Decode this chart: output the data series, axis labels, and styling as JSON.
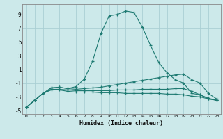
{
  "xlabel": "Humidex (Indice chaleur)",
  "x_ticks": [
    0,
    1,
    2,
    3,
    4,
    5,
    6,
    7,
    8,
    9,
    10,
    11,
    12,
    13,
    14,
    15,
    16,
    17,
    18,
    19,
    20,
    21,
    22,
    23
  ],
  "xlim": [
    -0.5,
    23.5
  ],
  "ylim": [
    -5.5,
    10.5
  ],
  "y_ticks": [
    -5,
    -3,
    -1,
    1,
    3,
    5,
    7,
    9
  ],
  "bg_color": "#cce9ea",
  "grid_color": "#aacfd4",
  "line_color": "#1e7a72",
  "lines": [
    {
      "x": [
        0,
        1,
        2,
        3,
        4,
        5,
        6,
        7,
        8,
        9,
        10,
        11,
        12,
        13,
        14,
        15,
        16,
        17,
        18,
        19,
        20,
        21,
        22,
        23
      ],
      "y": [
        -4.5,
        -3.5,
        -2.5,
        -1.7,
        -1.6,
        -1.8,
        -1.5,
        -0.4,
        2.2,
        6.2,
        8.8,
        9.0,
        9.5,
        9.3,
        7.2,
        4.5,
        2.0,
        0.5,
        -0.5,
        -1.0,
        -2.5,
        -2.7,
        -3.3,
        -3.5
      ]
    },
    {
      "x": [
        0,
        1,
        2,
        3,
        4,
        5,
        6,
        7,
        8,
        9,
        10,
        11,
        12,
        13,
        14,
        15,
        16,
        17,
        18,
        19,
        20,
        21,
        22,
        23
      ],
      "y": [
        -4.5,
        -3.5,
        -2.5,
        -1.7,
        -1.6,
        -1.8,
        -1.9,
        -1.8,
        -1.7,
        -1.6,
        -1.4,
        -1.2,
        -1.0,
        -0.8,
        -0.6,
        -0.4,
        -0.2,
        0.0,
        0.2,
        0.3,
        -0.5,
        -1.0,
        -2.5,
        -3.3
      ]
    },
    {
      "x": [
        0,
        1,
        2,
        3,
        4,
        5,
        6,
        7,
        8,
        9,
        10,
        11,
        12,
        13,
        14,
        15,
        16,
        17,
        18,
        19,
        20,
        21,
        22,
        23
      ],
      "y": [
        -4.5,
        -3.5,
        -2.5,
        -1.9,
        -1.9,
        -2.0,
        -2.1,
        -2.1,
        -2.1,
        -2.1,
        -2.1,
        -2.0,
        -2.0,
        -2.0,
        -1.9,
        -1.9,
        -1.9,
        -1.9,
        -1.8,
        -1.8,
        -2.2,
        -2.7,
        -3.2,
        -3.5
      ]
    },
    {
      "x": [
        0,
        1,
        2,
        3,
        4,
        5,
        6,
        7,
        8,
        9,
        10,
        11,
        12,
        13,
        14,
        15,
        16,
        17,
        18,
        19,
        20,
        21,
        22,
        23
      ],
      "y": [
        -4.5,
        -3.5,
        -2.5,
        -2.0,
        -2.0,
        -2.2,
        -2.3,
        -2.3,
        -2.3,
        -2.4,
        -2.4,
        -2.4,
        -2.5,
        -2.5,
        -2.5,
        -2.5,
        -2.5,
        -2.6,
        -2.6,
        -2.7,
        -2.9,
        -3.0,
        -3.3,
        -3.5
      ]
    }
  ]
}
